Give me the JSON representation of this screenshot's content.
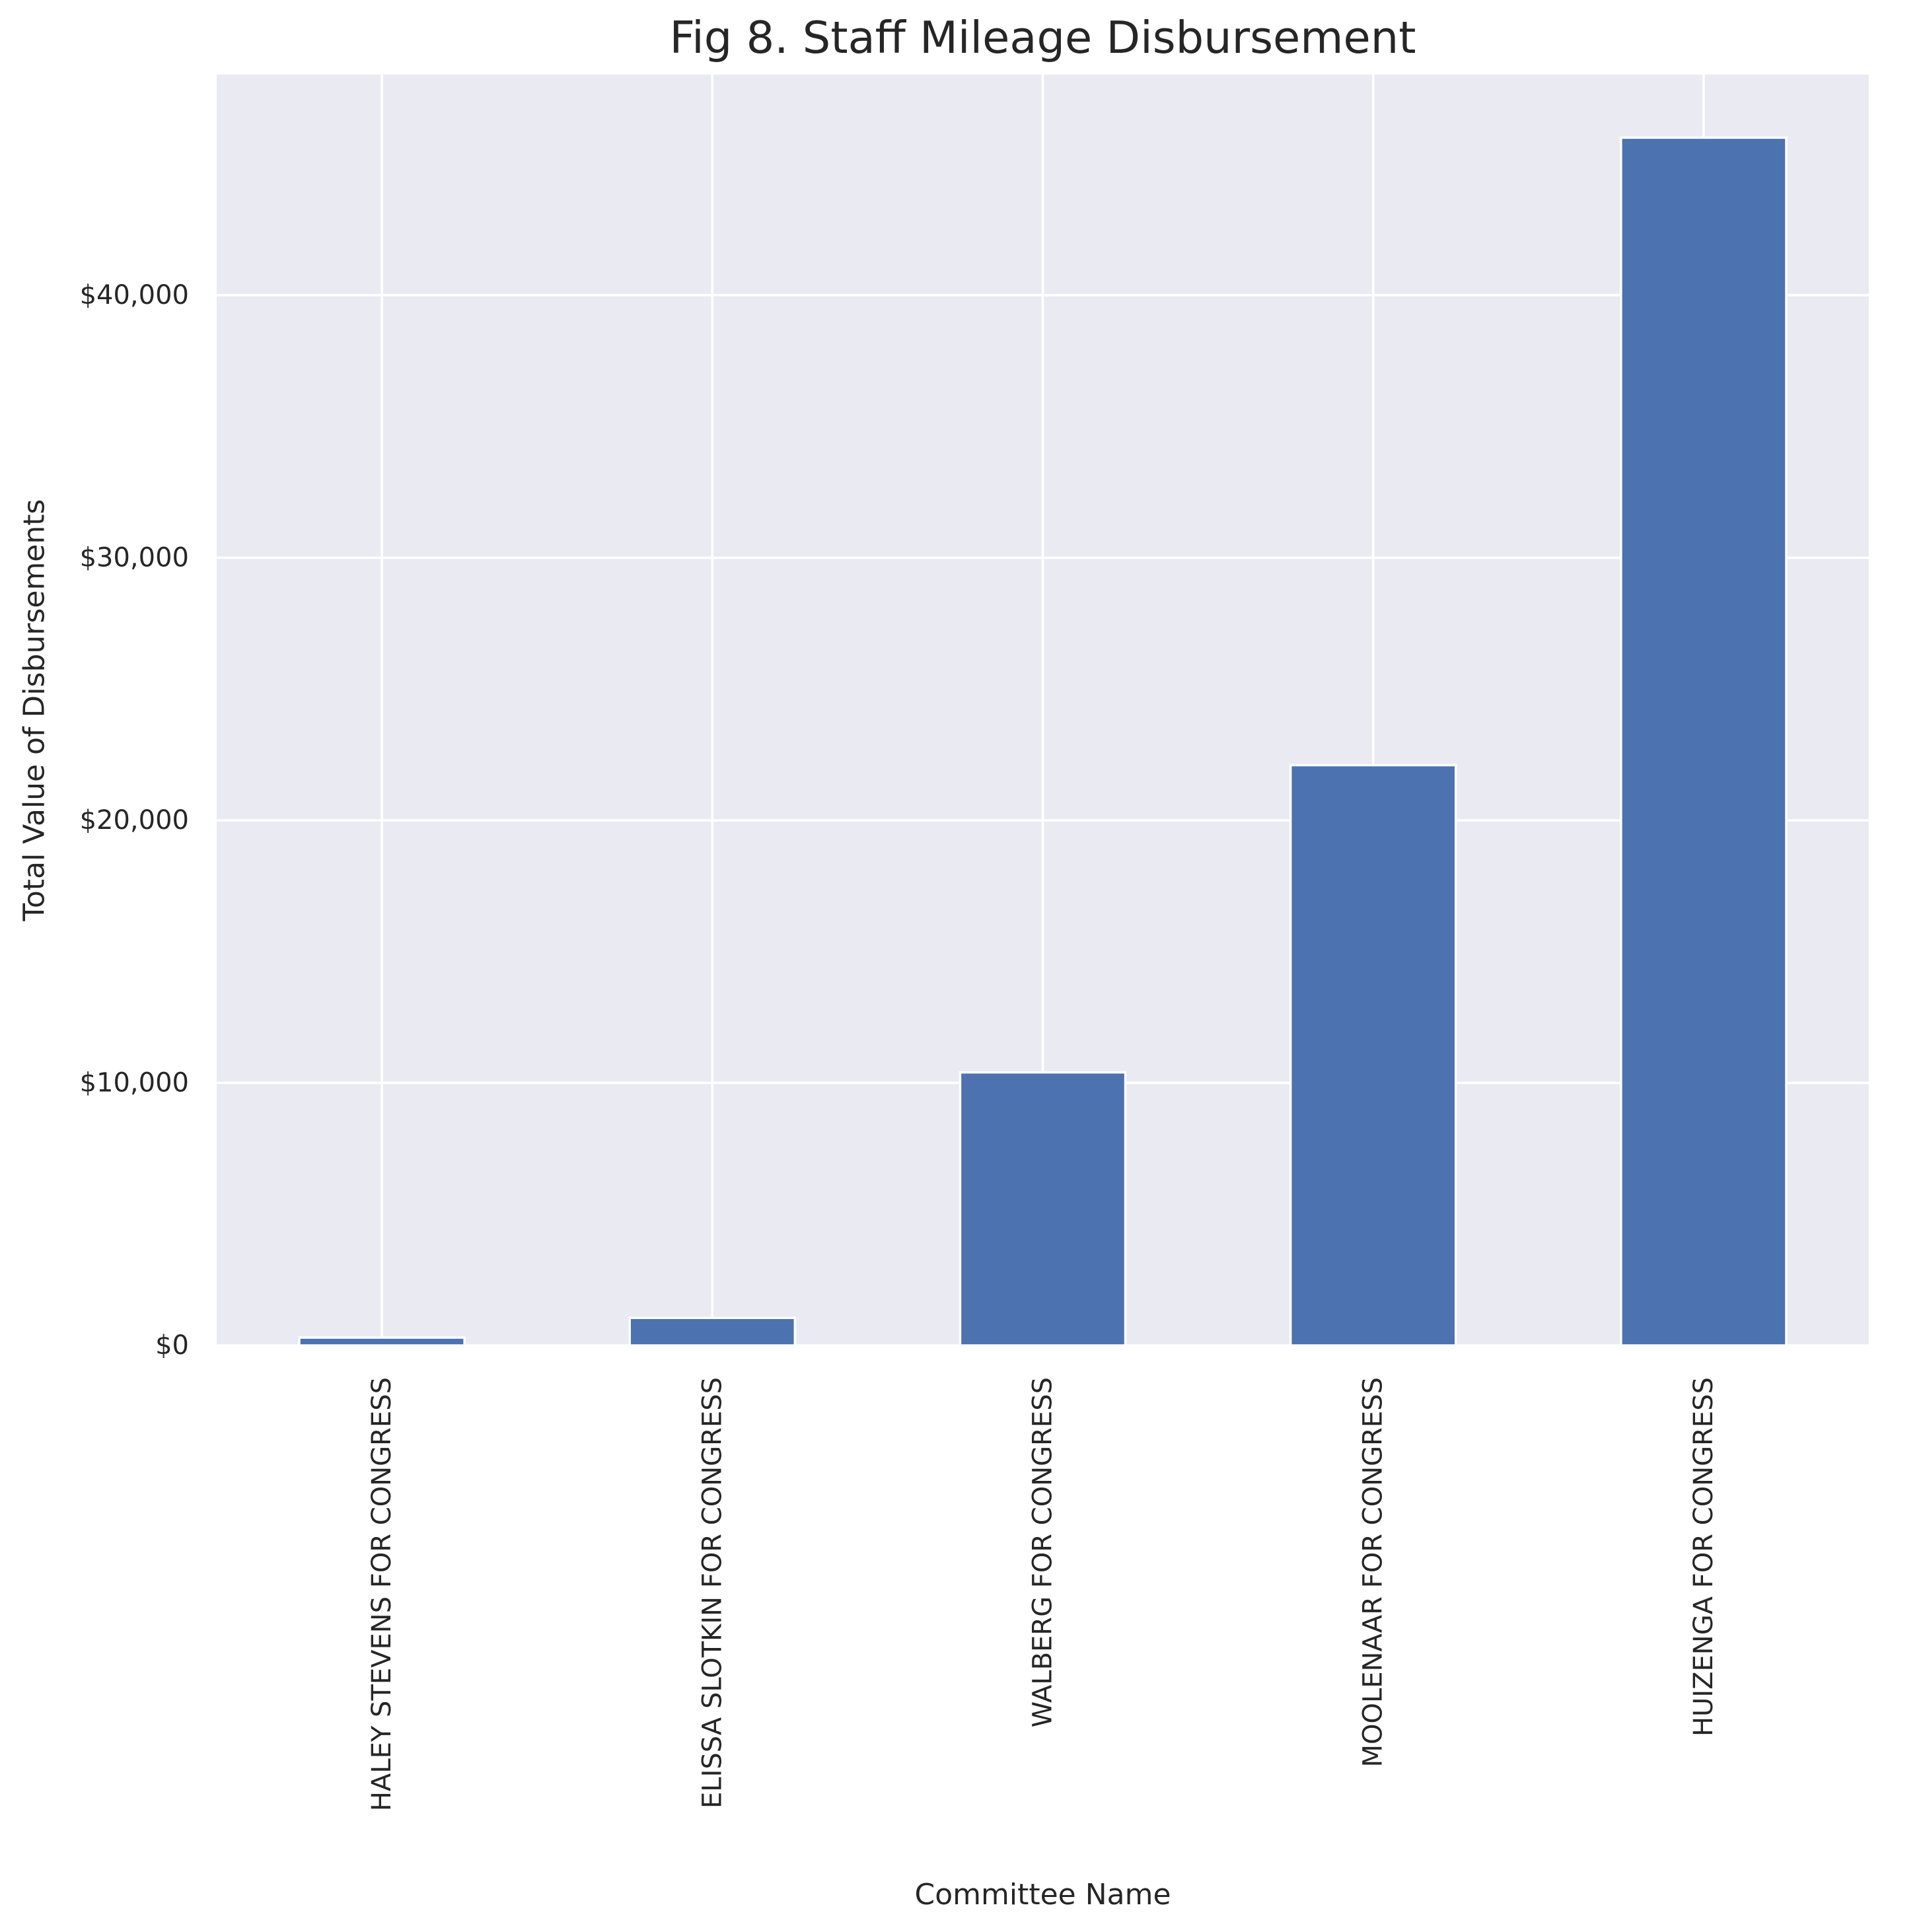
{
  "chart_data": {
    "type": "bar",
    "title": "Fig 8. Staff Mileage Disbursement",
    "xlabel": "Committee Name",
    "ylabel": "Total Value of Disbursements",
    "categories": [
      "HALEY STEVENS FOR CONGRESS",
      "ELISSA SLOTKIN FOR CONGRESS",
      "WALBERG FOR CONGRESS",
      "MOOLENAAR FOR CONGRESS",
      "HUIZENGA FOR CONGRESS"
    ],
    "values": [
      300,
      1050,
      10400,
      22100,
      46000
    ],
    "ylim": [
      0,
      48400
    ],
    "yticks": [
      0,
      10000,
      20000,
      30000,
      40000
    ],
    "ytick_labels": [
      "$0",
      "$10,000",
      "$20,000",
      "$30,000",
      "$40,000"
    ],
    "grid": true,
    "legend": false,
    "colors": {
      "bar": "#4c72b0",
      "background": "#eaeaf2",
      "grid": "#ffffff",
      "text": "#262626"
    }
  }
}
